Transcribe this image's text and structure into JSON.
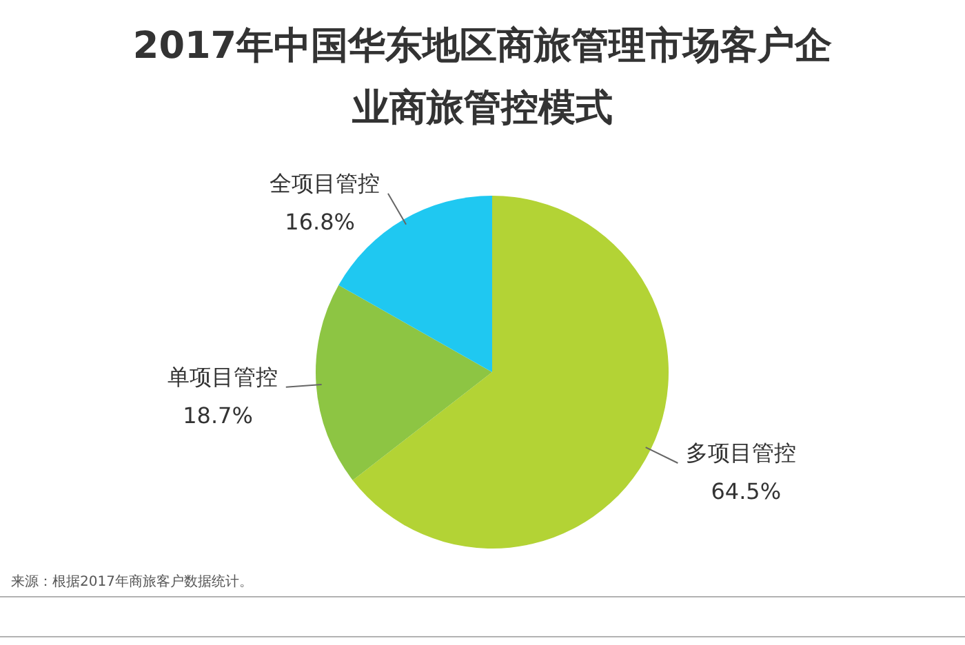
{
  "chart_data": {
    "type": "pie",
    "title": "2017年中国华东地区商旅管理市场客户企业商旅管控模式",
    "categories": [
      "多项目管控",
      "单项目管控",
      "全项目管控"
    ],
    "values": [
      64.5,
      18.7,
      16.8
    ],
    "value_labels": [
      "64.5%",
      "18.7%",
      "16.8%"
    ],
    "colors": [
      "#b3d335",
      "#8dc543",
      "#1fc8f1"
    ],
    "annotations": [
      "来源：根据2017年商旅客户数据统计。"
    ]
  }
}
